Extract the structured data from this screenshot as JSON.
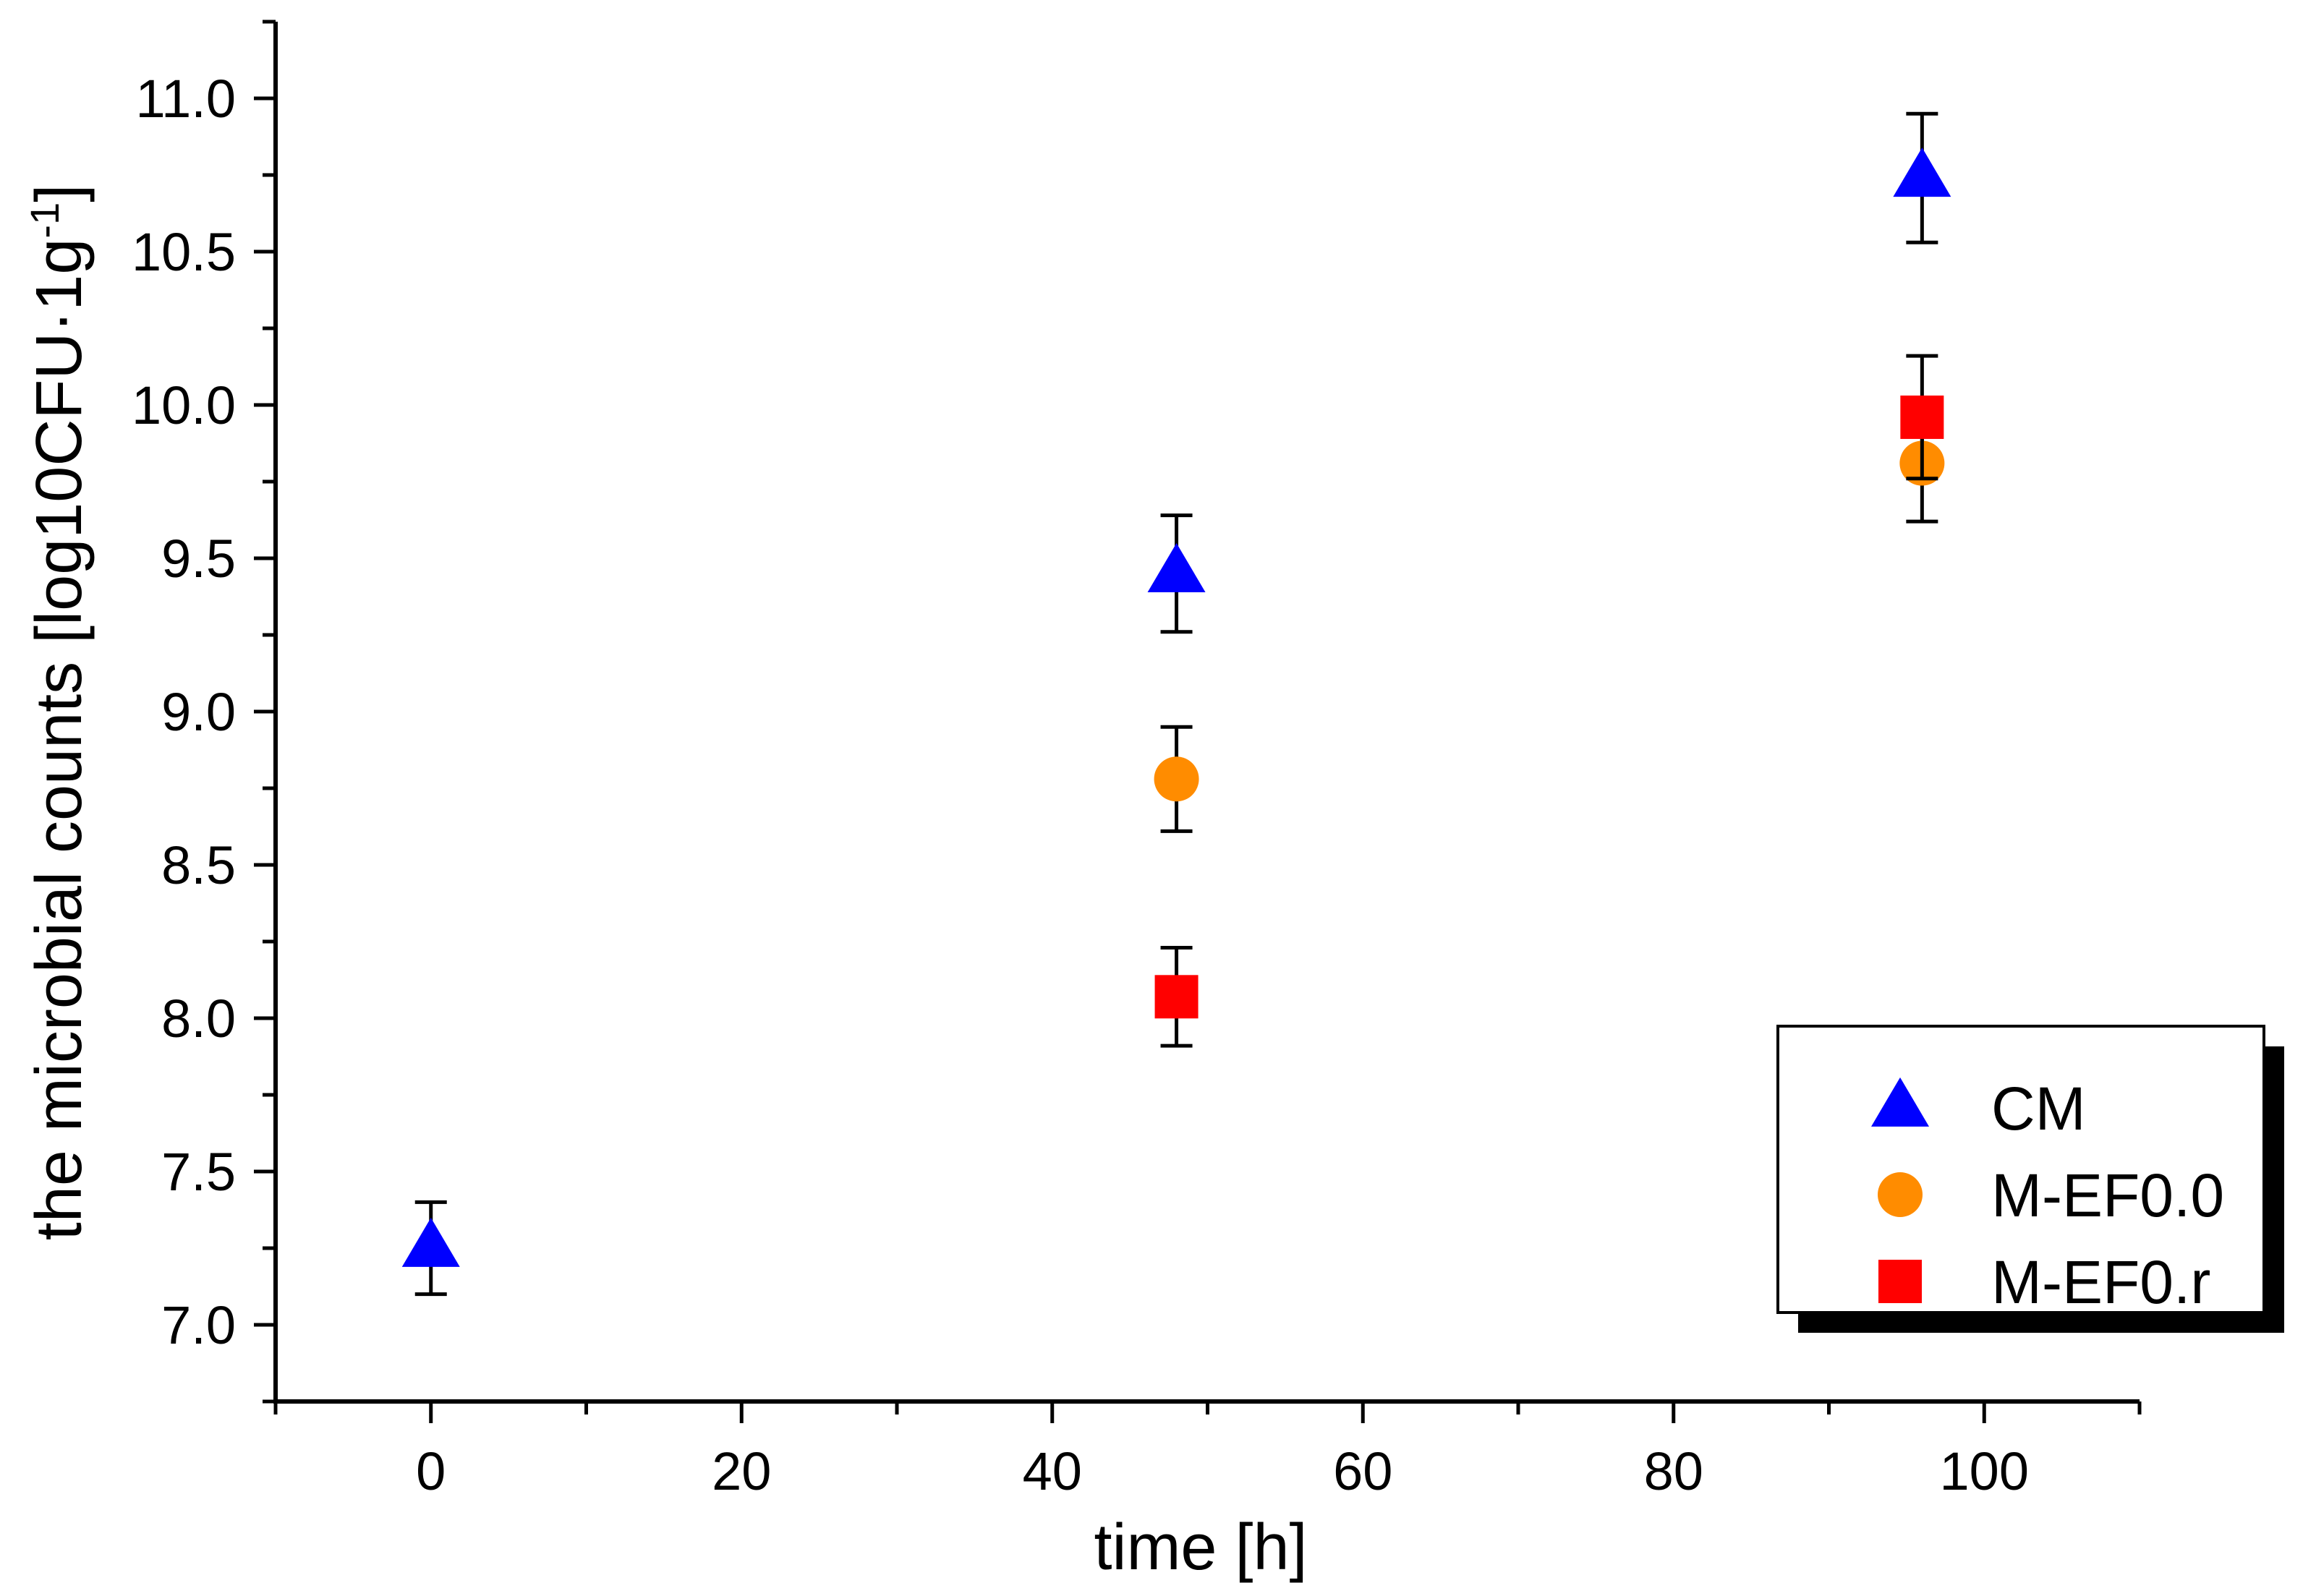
{
  "chart_data": {
    "type": "scatter",
    "title": "",
    "xlabel": "time [h]",
    "ylabel": {
      "main": "the microbial counts [log10CFU",
      "dot": "·",
      "mid": "1g",
      "sup": "-1",
      "end": "]"
    },
    "xlim": [
      -10,
      110
    ],
    "ylim": [
      6.75,
      11.25
    ],
    "x_ticks": [
      {
        "v": 0,
        "label": "0"
      },
      {
        "v": 20,
        "label": "20"
      },
      {
        "v": 40,
        "label": "40"
      },
      {
        "v": 60,
        "label": "60"
      },
      {
        "v": 80,
        "label": "80"
      },
      {
        "v": 100,
        "label": "100"
      }
    ],
    "y_ticks": [
      {
        "v": 7.0,
        "label": "7.0"
      },
      {
        "v": 7.5,
        "label": "7.5"
      },
      {
        "v": 8.0,
        "label": "8.0"
      },
      {
        "v": 8.5,
        "label": "8.5"
      },
      {
        "v": 9.0,
        "label": "9.0"
      },
      {
        "v": 9.5,
        "label": "9.5"
      },
      {
        "v": 10.0,
        "label": "10.0"
      },
      {
        "v": 10.5,
        "label": "10.5"
      },
      {
        "v": 11.0,
        "label": "11.0"
      }
    ],
    "grid": false,
    "legend_position": "bottom-right",
    "series": [
      {
        "name": "CM",
        "marker": "triangle",
        "color": "#0000ff",
        "points": [
          {
            "x": 0,
            "y": 7.25,
            "err": 0.15
          },
          {
            "x": 48,
            "y": 9.45,
            "err": 0.19
          },
          {
            "x": 96,
            "y": 10.74,
            "err": 0.21
          }
        ]
      },
      {
        "name": "M-EF0.0",
        "marker": "circle",
        "color": "#ff8c00",
        "points": [
          {
            "x": 48,
            "y": 8.78,
            "err": 0.17
          },
          {
            "x": 96,
            "y": 9.81,
            "err": 0.19
          }
        ]
      },
      {
        "name": "M-EF0.r",
        "marker": "square",
        "color": "#ff0000",
        "points": [
          {
            "x": 48,
            "y": 8.07,
            "err": 0.16
          },
          {
            "x": 96,
            "y": 9.96,
            "err": 0.2
          }
        ]
      }
    ]
  }
}
